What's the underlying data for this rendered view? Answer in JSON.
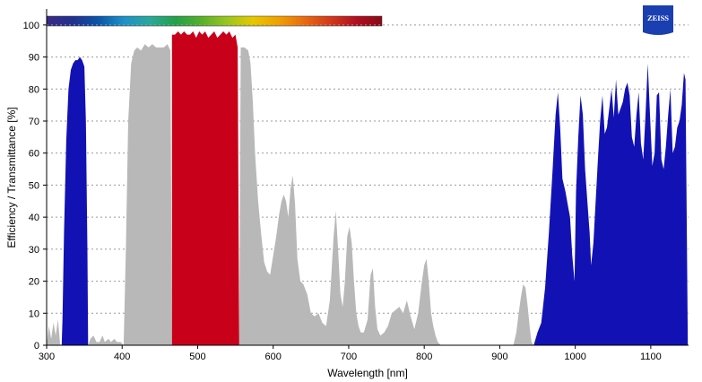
{
  "brand": {
    "logo_text": "ZEISS",
    "color": "#1a3fb0"
  },
  "colorbar": {
    "stops": [
      "#3b2a85",
      "#21308f",
      "#0a55a8",
      "#1e90c8",
      "#2aa89a",
      "#23a04a",
      "#56b02a",
      "#9bc61f",
      "#e6c800",
      "#f0a000",
      "#e86a10",
      "#d23a1a",
      "#b01020",
      "#8a0a18"
    ]
  },
  "chart_data": {
    "type": "area",
    "xlabel": "Wavelength [nm]",
    "ylabel": "Efficiency / Transmittance [%]",
    "xlim": [
      300,
      1150
    ],
    "ylim": [
      0,
      105
    ],
    "xticks": [
      300,
      400,
      500,
      600,
      700,
      800,
      900,
      1000,
      1100
    ],
    "yticks": [
      0,
      10,
      20,
      30,
      40,
      50,
      60,
      70,
      80,
      90,
      100
    ],
    "grid": "horizontal dotted",
    "series": [
      {
        "color": "#b8b8b8",
        "points": [
          [
            300,
            0
          ],
          [
            303,
            6
          ],
          [
            306,
            2
          ],
          [
            309,
            7
          ],
          [
            312,
            3
          ],
          [
            315,
            8
          ],
          [
            318,
            0
          ],
          [
            355,
            0
          ],
          [
            358,
            2
          ],
          [
            362,
            3
          ],
          [
            366,
            1
          ],
          [
            370,
            1
          ],
          [
            374,
            3
          ],
          [
            377,
            1
          ],
          [
            382,
            2
          ],
          [
            385,
            1
          ],
          [
            390,
            2
          ],
          [
            393,
            1
          ],
          [
            398,
            1
          ],
          [
            402,
            0
          ],
          [
            405,
            30
          ],
          [
            408,
            70
          ],
          [
            412,
            88
          ],
          [
            416,
            92
          ],
          [
            420,
            93
          ],
          [
            425,
            92
          ],
          [
            430,
            94
          ],
          [
            435,
            93
          ],
          [
            440,
            94
          ],
          [
            445,
            93
          ],
          [
            450,
            93
          ],
          [
            455,
            93
          ],
          [
            460,
            94
          ],
          [
            464,
            92
          ],
          [
            466,
            0
          ],
          [
            555,
            0
          ],
          [
            557,
            93
          ],
          [
            562,
            93
          ],
          [
            567,
            92
          ],
          [
            570,
            88
          ],
          [
            573,
            76
          ],
          [
            576,
            60
          ],
          [
            580,
            45
          ],
          [
            584,
            35
          ],
          [
            588,
            26
          ],
          [
            592,
            23
          ],
          [
            596,
            22
          ],
          [
            600,
            28
          ],
          [
            604,
            34
          ],
          [
            608,
            41
          ],
          [
            611,
            45
          ],
          [
            614,
            47
          ],
          [
            617,
            45
          ],
          [
            620,
            40
          ],
          [
            623,
            49
          ],
          [
            626,
            53
          ],
          [
            629,
            44
          ],
          [
            632,
            27
          ],
          [
            636,
            20
          ],
          [
            640,
            19
          ],
          [
            645,
            16
          ],
          [
            650,
            10
          ],
          [
            655,
            9
          ],
          [
            660,
            10
          ],
          [
            665,
            7
          ],
          [
            670,
            6
          ],
          [
            675,
            14
          ],
          [
            680,
            34
          ],
          [
            683,
            42
          ],
          [
            686,
            30
          ],
          [
            689,
            16
          ],
          [
            692,
            12
          ],
          [
            695,
            20
          ],
          [
            698,
            34
          ],
          [
            701,
            37
          ],
          [
            704,
            32
          ],
          [
            707,
            20
          ],
          [
            710,
            10
          ],
          [
            713,
            6
          ],
          [
            716,
            4
          ],
          [
            720,
            4
          ],
          [
            725,
            8
          ],
          [
            729,
            22
          ],
          [
            732,
            24
          ],
          [
            735,
            12
          ],
          [
            738,
            5
          ],
          [
            742,
            3
          ],
          [
            747,
            4
          ],
          [
            752,
            6
          ],
          [
            757,
            10
          ],
          [
            762,
            11
          ],
          [
            767,
            12
          ],
          [
            772,
            10
          ],
          [
            777,
            14
          ],
          [
            782,
            9
          ],
          [
            787,
            5
          ],
          [
            792,
            10
          ],
          [
            797,
            20
          ],
          [
            800,
            25
          ],
          [
            803,
            27
          ],
          [
            806,
            20
          ],
          [
            809,
            10
          ],
          [
            812,
            6
          ],
          [
            815,
            3
          ],
          [
            818,
            1
          ],
          [
            822,
            0
          ],
          [
            918,
            0
          ],
          [
            922,
            4
          ],
          [
            925,
            10
          ],
          [
            928,
            15
          ],
          [
            931,
            19
          ],
          [
            934,
            18
          ],
          [
            937,
            12
          ],
          [
            940,
            5
          ],
          [
            942,
            1
          ],
          [
            945,
            0
          ]
        ]
      },
      {
        "color": "#1212b4",
        "points": [
          [
            320,
            0
          ],
          [
            321,
            8
          ],
          [
            323,
            35
          ],
          [
            326,
            64
          ],
          [
            329,
            80
          ],
          [
            332,
            86
          ],
          [
            335,
            88
          ],
          [
            338,
            89
          ],
          [
            341,
            89
          ],
          [
            344,
            90
          ],
          [
            347,
            89
          ],
          [
            350,
            87
          ],
          [
            352,
            70
          ],
          [
            354,
            30
          ],
          [
            355,
            0
          ],
          [
            945,
            0
          ],
          [
            950,
            4
          ],
          [
            955,
            7
          ],
          [
            960,
            18
          ],
          [
            965,
            35
          ],
          [
            970,
            55
          ],
          [
            974,
            72
          ],
          [
            977,
            79
          ],
          [
            980,
            68
          ],
          [
            983,
            52
          ],
          [
            987,
            48
          ],
          [
            990,
            44
          ],
          [
            993,
            40
          ],
          [
            996,
            28
          ],
          [
            999,
            20
          ],
          [
            1001,
            48
          ],
          [
            1004,
            65
          ],
          [
            1007,
            78
          ],
          [
            1010,
            72
          ],
          [
            1013,
            55
          ],
          [
            1016,
            45
          ],
          [
            1019,
            35
          ],
          [
            1021,
            25
          ],
          [
            1024,
            32
          ],
          [
            1027,
            45
          ],
          [
            1030,
            58
          ],
          [
            1033,
            70
          ],
          [
            1036,
            78
          ],
          [
            1039,
            66
          ],
          [
            1042,
            68
          ],
          [
            1045,
            74
          ],
          [
            1048,
            80
          ],
          [
            1051,
            71
          ],
          [
            1054,
            83
          ],
          [
            1057,
            72
          ],
          [
            1060,
            74
          ],
          [
            1063,
            76
          ],
          [
            1066,
            80
          ],
          [
            1069,
            82
          ],
          [
            1072,
            78
          ],
          [
            1075,
            65
          ],
          [
            1078,
            62
          ],
          [
            1081,
            72
          ],
          [
            1084,
            79
          ],
          [
            1087,
            63
          ],
          [
            1090,
            58
          ],
          [
            1093,
            72
          ],
          [
            1096,
            88
          ],
          [
            1099,
            72
          ],
          [
            1102,
            56
          ],
          [
            1105,
            60
          ],
          [
            1108,
            78
          ],
          [
            1111,
            79
          ],
          [
            1114,
            58
          ],
          [
            1117,
            55
          ],
          [
            1120,
            62
          ],
          [
            1123,
            72
          ],
          [
            1126,
            80
          ],
          [
            1129,
            60
          ],
          [
            1132,
            62
          ],
          [
            1135,
            68
          ],
          [
            1138,
            70
          ],
          [
            1141,
            75
          ],
          [
            1144,
            85
          ],
          [
            1146,
            83
          ],
          [
            1149,
            0
          ]
        ]
      },
      {
        "color": "#c8001a",
        "points": [
          [
            466,
            0
          ],
          [
            466,
            97
          ],
          [
            470,
            97
          ],
          [
            474,
            98
          ],
          [
            478,
            97
          ],
          [
            482,
            98
          ],
          [
            486,
            97
          ],
          [
            490,
            97
          ],
          [
            494,
            98
          ],
          [
            498,
            96
          ],
          [
            502,
            98
          ],
          [
            506,
            97
          ],
          [
            510,
            98
          ],
          [
            514,
            96
          ],
          [
            518,
            97
          ],
          [
            522,
            98
          ],
          [
            526,
            96
          ],
          [
            530,
            97
          ],
          [
            534,
            98
          ],
          [
            538,
            97
          ],
          [
            542,
            98
          ],
          [
            546,
            96
          ],
          [
            550,
            97
          ],
          [
            553,
            93
          ],
          [
            555,
            0
          ]
        ]
      }
    ]
  }
}
